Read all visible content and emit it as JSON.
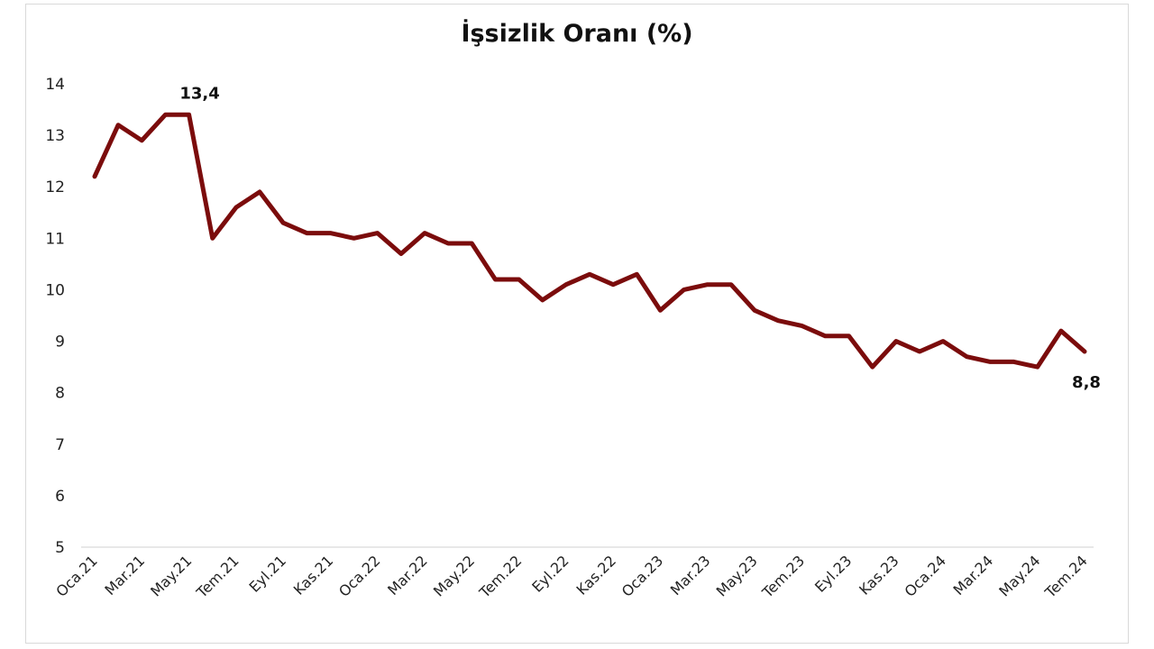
{
  "chart_data": {
    "type": "line",
    "title": "İşsizlik Oranı (%)",
    "xlabel": "",
    "ylabel": "",
    "ylim": [
      5,
      14
    ],
    "yticks": [
      5,
      6,
      7,
      8,
      9,
      10,
      11,
      12,
      13,
      14
    ],
    "grid": false,
    "legend": "none",
    "line_color": "#7b0c0c",
    "x": [
      "Oca.21",
      "Şub.21",
      "Mar.21",
      "Nis.21",
      "May.21",
      "Haz.21",
      "Tem.21",
      "Ağu.21",
      "Eyl.21",
      "Eki.21",
      "Kas.21",
      "Ara.21",
      "Oca.22",
      "Şub.22",
      "Mar.22",
      "Nis.22",
      "May.22",
      "Haz.22",
      "Tem.22",
      "Ağu.22",
      "Eyl.22",
      "Eki.22",
      "Kas.22",
      "Ara.22",
      "Oca.23",
      "Şub.23",
      "Mar.23",
      "Nis.23",
      "May.23",
      "Haz.23",
      "Tem.23",
      "Ağu.23",
      "Eyl.23",
      "Eki.23",
      "Kas.23",
      "Ara.23",
      "Oca.24",
      "Şub.24",
      "Mar.24",
      "Nis.24",
      "May.24",
      "Haz.24",
      "Tem.24"
    ],
    "x_tick_labels": [
      "Oca.21",
      "Mar.21",
      "May.21",
      "Tem.21",
      "Eyl.21",
      "Kas.21",
      "Oca.22",
      "Mar.22",
      "May.22",
      "Tem.22",
      "Eyl.22",
      "Kas.22",
      "Oca.23",
      "Mar.23",
      "May.23",
      "Tem.23",
      "Eyl.23",
      "Kas.23",
      "Oca.24",
      "Mar.24",
      "May.24",
      "Tem.24"
    ],
    "series": [
      {
        "values": [
          12.2,
          13.2,
          12.9,
          13.4,
          13.4,
          11.0,
          11.6,
          11.9,
          11.3,
          11.1,
          11.1,
          11.0,
          11.1,
          10.7,
          11.1,
          10.9,
          10.9,
          10.2,
          10.2,
          9.8,
          10.1,
          10.3,
          10.1,
          10.3,
          9.6,
          10.0,
          10.1,
          10.1,
          9.6,
          9.4,
          9.3,
          9.1,
          9.1,
          8.5,
          9.0,
          8.8,
          9.0,
          8.7,
          8.6,
          8.6,
          8.5,
          9.2,
          8.8
        ]
      }
    ],
    "annotations": [
      {
        "index": 4,
        "text": "13,4"
      },
      {
        "index": 42,
        "text": "8,8"
      }
    ]
  }
}
